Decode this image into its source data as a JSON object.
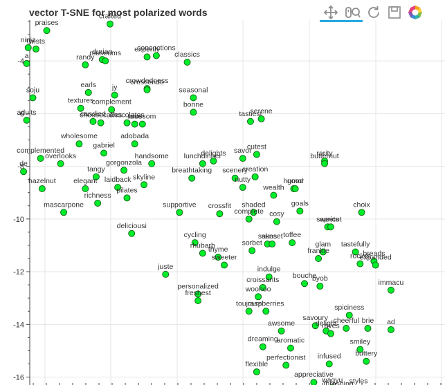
{
  "title": "vector T-SNE for most polarized words",
  "toolbar": {
    "tools": [
      "pan-icon",
      "wheel-zoom-icon",
      "reset-icon",
      "save-icon",
      "bokeh-logo-icon"
    ],
    "active_color": "#26aae1"
  },
  "colors": {
    "point_fill": "#00ee2a",
    "point_stroke": "#1a6b1a",
    "grid": "#e5e5e5",
    "axis": "#444444",
    "text": "#333333"
  },
  "chart_data": {
    "type": "scatter",
    "title": "vector T-SNE for most polarized words",
    "xlabel": "",
    "ylabel": "",
    "ylim": [
      -16.3,
      -2.45
    ],
    "xlim": [
      -29.8,
      -2.9
    ],
    "y_ticks": [
      -16,
      -14,
      -12,
      -10,
      -8,
      -6,
      -4
    ],
    "y_tick_labels": [
      "-16",
      "-14",
      "-12",
      "-10",
      "-8",
      "-6",
      "-4"
    ],
    "grid": true,
    "points": [
      {
        "label": "crafted",
        "x": -24.6,
        "y": -2.6
      },
      {
        "label": "praises",
        "x": -28.7,
        "y": -2.85
      },
      {
        "label": "ninja",
        "x": -29.9,
        "y": -3.5
      },
      {
        "label": "twists",
        "x": -29.4,
        "y": -3.55
      },
      {
        "label": "a",
        "x": -30.0,
        "y": -4.1
      },
      {
        "label": "randy",
        "x": -26.2,
        "y": -4.15
      },
      {
        "label": "durian",
        "x": -25.1,
        "y": -3.95
      },
      {
        "label": "museums",
        "x": -24.9,
        "y": -4.0
      },
      {
        "label": "expertly",
        "x": -22.2,
        "y": -3.85
      },
      {
        "label": "concoctions",
        "x": -21.6,
        "y": -3.8
      },
      {
        "label": "classics",
        "x": -19.6,
        "y": -4.05
      },
      {
        "label": "soju",
        "x": -29.6,
        "y": -5.4
      },
      {
        "label": "earls",
        "x": -26.0,
        "y": -5.2
      },
      {
        "label": "jy",
        "x": -24.3,
        "y": -5.3
      },
      {
        "label": "crowdedness",
        "x": -22.2,
        "y": -5.05
      },
      {
        "label": "crescendo",
        "x": -22.2,
        "y": -5.1
      },
      {
        "label": "seasonal",
        "x": -19.2,
        "y": -5.4
      },
      {
        "label": "textures",
        "x": -26.5,
        "y": -5.8
      },
      {
        "label": "complement",
        "x": -24.5,
        "y": -5.85
      },
      {
        "label": "bonne",
        "x": -19.2,
        "y": -5.95
      },
      {
        "label": "serene",
        "x": -14.8,
        "y": -6.2
      },
      {
        "label": "tastiest",
        "x": -15.5,
        "y": -6.3
      },
      {
        "label": "adults",
        "x": -30.0,
        "y": -6.25
      },
      {
        "label": "candied",
        "x": -25.7,
        "y": -6.3
      },
      {
        "label": "cheesecakes",
        "x": -25.2,
        "y": -6.35
      },
      {
        "label": "chocolates",
        "x": -23.5,
        "y": -6.35
      },
      {
        "label": "blossom",
        "x": -22.5,
        "y": -6.4
      },
      {
        "label": "rose",
        "x": -23.0,
        "y": -6.4
      },
      {
        "label": "wholesome",
        "x": -26.6,
        "y": -7.15
      },
      {
        "label": "adobada",
        "x": -23.0,
        "y": -7.15
      },
      {
        "label": "gabriel",
        "x": -25.0,
        "y": -7.5
      },
      {
        "label": "cutest",
        "x": -15.1,
        "y": -7.55
      },
      {
        "label": "savor",
        "x": -16.0,
        "y": -7.7
      },
      {
        "label": "complemented",
        "x": -29.1,
        "y": -7.7
      },
      {
        "label": "overlooks",
        "x": -27.8,
        "y": -7.9
      },
      {
        "label": "lunchdinner",
        "x": -18.6,
        "y": -7.9
      },
      {
        "label": "delights",
        "x": -17.9,
        "y": -7.8
      },
      {
        "label": "handsome",
        "x": -21.9,
        "y": -7.9
      },
      {
        "label": "rarity",
        "x": -10.7,
        "y": -7.8
      },
      {
        "label": "butternut",
        "x": -10.7,
        "y": -7.9
      },
      {
        "label": "gorgonzola",
        "x": -23.7,
        "y": -8.15
      },
      {
        "label": "de",
        "x": -30.2,
        "y": -8.2
      },
      {
        "label": "tangy",
        "x": -25.5,
        "y": -8.4
      },
      {
        "label": "breathtaking",
        "x": -19.3,
        "y": -8.45
      },
      {
        "label": "scenery",
        "x": -16.5,
        "y": -8.45
      },
      {
        "label": "creation",
        "x": -15.2,
        "y": -8.4
      },
      {
        "label": "skyline",
        "x": -22.4,
        "y": -8.7
      },
      {
        "label": "laidback",
        "x": -24.1,
        "y": -8.8
      },
      {
        "label": "elegant",
        "x": -26.2,
        "y": -8.85
      },
      {
        "label": "hazelnut",
        "x": -29.0,
        "y": -8.85
      },
      {
        "label": "nutty",
        "x": -16.0,
        "y": -8.8
      },
      {
        "label": "humor",
        "x": -12.7,
        "y": -8.85
      },
      {
        "label": "good",
        "x": -12.6,
        "y": -8.85
      },
      {
        "label": "wealth",
        "x": -14.0,
        "y": -9.1
      },
      {
        "label": "richness",
        "x": -25.4,
        "y": -9.4
      },
      {
        "label": "pilates",
        "x": -23.5,
        "y": -9.2
      },
      {
        "label": "goals",
        "x": -12.3,
        "y": -9.7
      },
      {
        "label": "choix",
        "x": -8.3,
        "y": -9.75
      },
      {
        "label": "mascarpone",
        "x": -27.6,
        "y": -9.75
      },
      {
        "label": "supportive",
        "x": -20.1,
        "y": -9.75
      },
      {
        "label": "crossfit",
        "x": -17.5,
        "y": -9.8
      },
      {
        "label": "shaded",
        "x": -15.3,
        "y": -9.75
      },
      {
        "label": "complete",
        "x": -15.6,
        "y": -10.0
      },
      {
        "label": "cosy",
        "x": -13.8,
        "y": -10.1
      },
      {
        "label": "sweets",
        "x": -10.5,
        "y": -10.3
      },
      {
        "label": "apricot",
        "x": -10.3,
        "y": -10.3
      },
      {
        "label": "deliciousi",
        "x": -23.2,
        "y": -10.55
      },
      {
        "label": "toffee",
        "x": -12.8,
        "y": -10.9
      },
      {
        "label": "sakes",
        "x": -14.4,
        "y": -10.95
      },
      {
        "label": "sunset",
        "x": -14.1,
        "y": -10.95
      },
      {
        "label": "cycling",
        "x": -19.1,
        "y": -10.9
      },
      {
        "label": "sorbet",
        "x": -15.4,
        "y": -11.2
      },
      {
        "label": "glam",
        "x": -10.8,
        "y": -11.25
      },
      {
        "label": "tastefully",
        "x": -8.7,
        "y": -11.25
      },
      {
        "label": "rhubarb",
        "x": -18.6,
        "y": -11.3
      },
      {
        "label": "thyme",
        "x": -17.6,
        "y": -11.45
      },
      {
        "label": "frankie",
        "x": -11.1,
        "y": -11.5
      },
      {
        "label": "breads",
        "x": -7.5,
        "y": -11.6
      },
      {
        "label": "expanded",
        "x": -7.4,
        "y": -11.75
      },
      {
        "label": "sweeter",
        "x": -17.2,
        "y": -11.75
      },
      {
        "label": "rocket",
        "x": -8.4,
        "y": -11.7
      },
      {
        "label": "juste",
        "x": -21.0,
        "y": -12.1
      },
      {
        "label": "indulge",
        "x": -14.3,
        "y": -12.2
      },
      {
        "label": "bouche",
        "x": -12.0,
        "y": -12.45
      },
      {
        "label": "byob",
        "x": -11.0,
        "y": -12.55
      },
      {
        "label": "croissants",
        "x": -14.7,
        "y": -12.6
      },
      {
        "label": "personalized",
        "x": -18.9,
        "y": -12.85
      },
      {
        "label": "freshest",
        "x": -18.9,
        "y": -13.1
      },
      {
        "label": "woohoo",
        "x": -15.0,
        "y": -12.95
      },
      {
        "label": "immacu",
        "x": -6.4,
        "y": -12.7
      },
      {
        "label": "toujours",
        "x": -15.6,
        "y": -13.5
      },
      {
        "label": "raspberries",
        "x": -14.5,
        "y": -13.5
      },
      {
        "label": "spiciness",
        "x": -9.1,
        "y": -13.65
      },
      {
        "label": "savoury",
        "x": -11.3,
        "y": -14.05
      },
      {
        "label": "delight",
        "x": -10.6,
        "y": -14.25
      },
      {
        "label": "raves",
        "x": -10.3,
        "y": -14.35
      },
      {
        "label": "cheerful",
        "x": -9.3,
        "y": -14.15
      },
      {
        "label": "brie",
        "x": -7.9,
        "y": -14.15
      },
      {
        "label": "ad",
        "x": -6.4,
        "y": -14.2
      },
      {
        "label": "awsome",
        "x": -13.5,
        "y": -14.25
      },
      {
        "label": "dreaming",
        "x": -14.7,
        "y": -14.85
      },
      {
        "label": "aromatic",
        "x": -12.9,
        "y": -14.9
      },
      {
        "label": "smiley",
        "x": -8.4,
        "y": -14.95
      },
      {
        "label": "buttery",
        "x": -8.0,
        "y": -15.4
      },
      {
        "label": "infused",
        "x": -10.4,
        "y": -15.5
      },
      {
        "label": "perfectionist",
        "x": -13.2,
        "y": -15.55
      },
      {
        "label": "flexible",
        "x": -15.1,
        "y": -15.8
      },
      {
        "label": "appreciative",
        "x": -11.4,
        "y": -16.2
      },
      {
        "label": "wagyu",
        "x": -10.2,
        "y": -16.4
      },
      {
        "label": "thrashing",
        "x": -9.8,
        "y": -16.55
      },
      {
        "label": "styles",
        "x": -8.5,
        "y": -16.45
      }
    ]
  }
}
